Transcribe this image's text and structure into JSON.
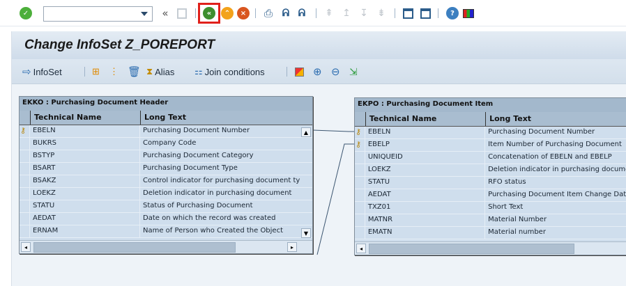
{
  "toolbar": {
    "command_field": "",
    "icons": [
      "enter-check-icon",
      "back-icon",
      "save-icon",
      "back-green-icon",
      "exit-icon",
      "cancel-icon",
      "print-icon",
      "find-icon",
      "find-next-icon",
      "first-page-icon",
      "previous-page-icon",
      "next-page-icon",
      "last-page-icon",
      "new-session-icon",
      "shortcut-icon",
      "help-icon",
      "customize-layout-icon"
    ],
    "highlight_color": "#e0201b"
  },
  "title": "Change InfoSet Z_POREPORT",
  "app_toolbar": {
    "infoset": "InfoSet",
    "alias": "Alias",
    "join_conditions": "Join conditions"
  },
  "tables": [
    {
      "caption": "EKKO : Purchasing Document Header",
      "columns": [
        "Technical Name",
        "Long Text"
      ],
      "rows": [
        [
          "EBELN",
          "Purchasing Document Number",
          true
        ],
        [
          "BUKRS",
          "Company Code",
          false
        ],
        [
          "BSTYP",
          "Purchasing Document Category",
          false
        ],
        [
          "BSART",
          "Purchasing Document Type",
          false
        ],
        [
          "BSAKZ",
          "Control indicator for purchasing document type",
          false
        ],
        [
          "LOEKZ",
          "Deletion indicator in purchasing document",
          false
        ],
        [
          "STATU",
          "Status of Purchasing Document",
          false
        ],
        [
          "AEDAT",
          "Date on which the record was created",
          false
        ],
        [
          "ERNAM",
          "Name of Person who Created the Object",
          false
        ]
      ]
    },
    {
      "caption": "EKPO : Purchasing Document Item",
      "columns": [
        "Technical Name",
        "Long Text"
      ],
      "rows": [
        [
          "EBELN",
          "Purchasing Document Number",
          true
        ],
        [
          "EBELP",
          "Item Number of Purchasing Document",
          true
        ],
        [
          "UNIQUEID",
          "Concatenation of EBELN and EBELP",
          false
        ],
        [
          "LOEKZ",
          "Deletion indicator in purchasing document",
          false
        ],
        [
          "STATU",
          "RFO status",
          false
        ],
        [
          "AEDAT",
          "Purchasing Document Item Change Date",
          false
        ],
        [
          "TXZ01",
          "Short Text",
          false
        ],
        [
          "MATNR",
          "Material Number",
          false
        ],
        [
          "EMATN",
          "Material number",
          false
        ]
      ]
    }
  ]
}
